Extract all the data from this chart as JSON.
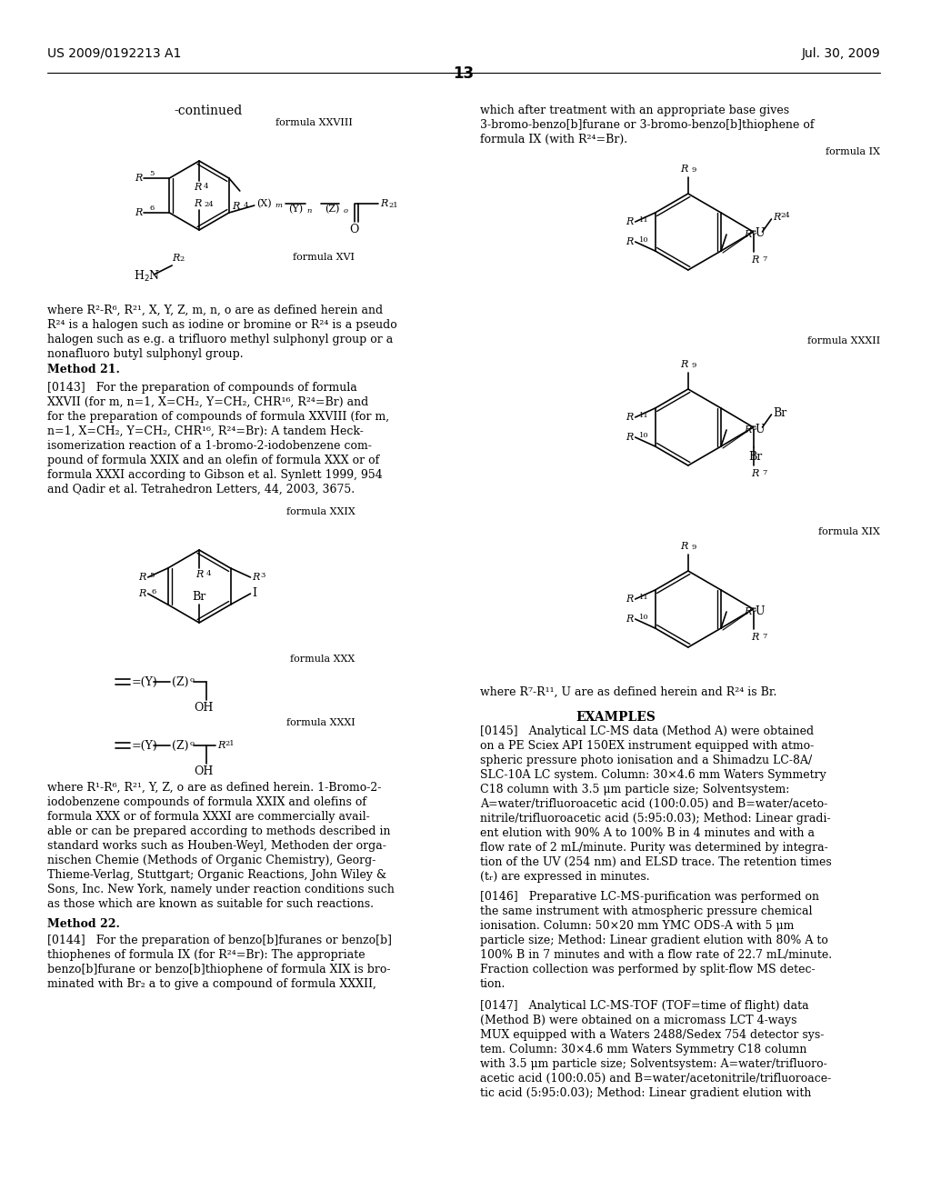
{
  "title": "US 2009/0192213 A1",
  "date": "Jul. 30, 2009",
  "page_num": "13",
  "bg_color": "#ffffff",
  "text_color": "#000000"
}
